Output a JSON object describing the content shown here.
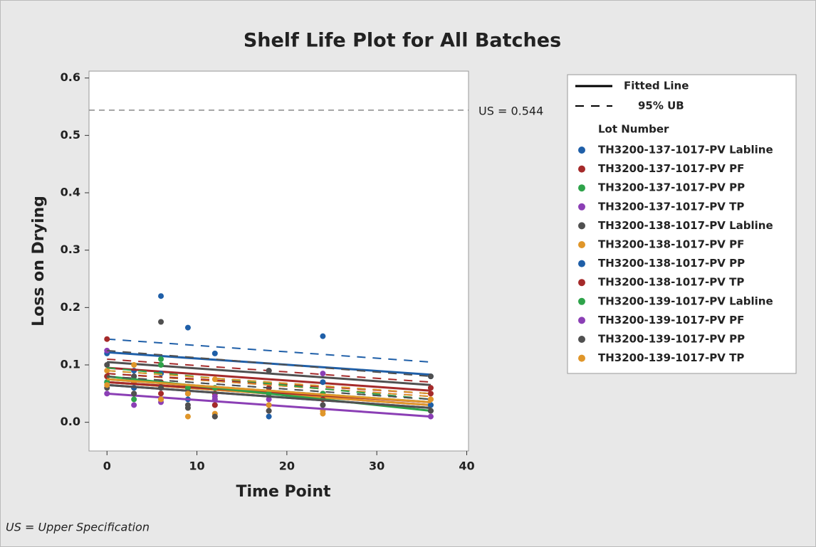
{
  "chart_data": {
    "type": "scatter",
    "title": "Shelf Life Plot for All Batches",
    "xlabel": "Time Point",
    "ylabel": "Loss on Drying",
    "footnote": "US = Upper Specification",
    "legend_fit": "Fitted Line",
    "legend_ub": "95% UB",
    "legend_title": "Lot Number",
    "reference_line": {
      "value": 0.544,
      "label": "US = 0.544"
    },
    "x": [
      0,
      3,
      6,
      9,
      12,
      18,
      24,
      36
    ],
    "line_x": [
      0,
      36
    ],
    "xlim": [
      -2,
      40.2
    ],
    "xticks": [
      0,
      10,
      20,
      30,
      40
    ],
    "ylim": [
      -0.05,
      0.612
    ],
    "yticks": [
      {
        "value": 0,
        "label": "0.0"
      },
      0.1,
      0.2,
      0.3,
      0.4,
      0.5,
      0.6
    ],
    "series": [
      {
        "name": "TH3200-137-1017-PV Labline",
        "color": "#1f5fa8",
        "values": [
          0.12,
          0.09,
          0.22,
          0.165,
          0.12,
          0.09,
          0.15,
          0.08
        ],
        "fit": [
          0.122,
          0.083
        ],
        "ub": [
          0.145,
          0.105
        ]
      },
      {
        "name": "TH3200-137-1017-PV PF",
        "color": "#a52a2a",
        "values": [
          0.145,
          0.08,
          0.07,
          0.06,
          0.05,
          0.06,
          0.05,
          0.05
        ],
        "fit": [
          0.095,
          0.055
        ],
        "ub": [
          0.11,
          0.07
        ]
      },
      {
        "name": "TH3200-137-1017-PV PP",
        "color": "#2ea34a",
        "values": [
          0.08,
          0.06,
          0.11,
          0.05,
          0.04,
          0.05,
          0.04,
          0.03
        ],
        "fit": [
          0.075,
          0.035
        ],
        "ub": [
          0.09,
          0.05
        ]
      },
      {
        "name": "TH3200-137-1017-PV TP",
        "color": "#8b3fb5",
        "values": [
          0.125,
          0.07,
          0.06,
          0.05,
          0.045,
          0.04,
          0.085,
          0.02
        ],
        "fit": [
          0.07,
          0.03
        ],
        "ub": [
          0.085,
          0.045
        ]
      },
      {
        "name": "TH3200-138-1017-PV Labline",
        "color": "#505050",
        "values": [
          0.1,
          0.08,
          0.175,
          0.03,
          0.01,
          0.09,
          0.07,
          0.08
        ],
        "fit": [
          0.105,
          0.065
        ],
        "ub": [
          0.125,
          0.08
        ]
      },
      {
        "name": "TH3200-138-1017-PV PF",
        "color": "#e0962a",
        "values": [
          0.09,
          0.07,
          0.04,
          0.01,
          0.015,
          0.05,
          0.02,
          0.04
        ],
        "fit": [
          0.07,
          0.03
        ],
        "ub": [
          0.085,
          0.045
        ]
      },
      {
        "name": "TH3200-138-1017-PV PP",
        "color": "#1f5fa8",
        "values": [
          0.07,
          0.06,
          0.085,
          0.04,
          0.03,
          0.01,
          0.07,
          0.03
        ],
        "fit": [
          0.065,
          0.025
        ],
        "ub": [
          0.08,
          0.04
        ]
      },
      {
        "name": "TH3200-138-1017-PV TP",
        "color": "#a52a2a",
        "values": [
          0.08,
          0.05,
          0.05,
          0.06,
          0.03,
          0.02,
          0.04,
          0.06
        ],
        "fit": [
          0.07,
          0.035
        ],
        "ub": [
          0.085,
          0.05
        ]
      },
      {
        "name": "TH3200-139-1017-PV Labline",
        "color": "#2ea34a",
        "values": [
          0.07,
          0.04,
          0.1,
          0.06,
          0.06,
          0.05,
          0.05,
          0.02
        ],
        "fit": [
          0.08,
          0.02
        ],
        "ub": [
          0.095,
          0.04
        ]
      },
      {
        "name": "TH3200-139-1017-PV PF",
        "color": "#8b3fb5",
        "values": [
          0.05,
          0.03,
          0.035,
          0.05,
          0.04,
          0.03,
          0.03,
          0.01
        ],
        "fit": [
          0.05,
          0.01
        ],
        "ub": [
          0.065,
          0.025
        ]
      },
      {
        "name": "TH3200-139-1017-PV PP",
        "color": "#505050",
        "values": [
          0.06,
          0.05,
          0.06,
          0.025,
          0.01,
          0.02,
          0.03,
          0.02
        ],
        "fit": [
          0.065,
          0.025
        ],
        "ub": [
          0.08,
          0.04
        ]
      },
      {
        "name": "TH3200-139-1017-PV TP",
        "color": "#e0962a",
        "values": [
          0.065,
          0.1,
          0.04,
          0.05,
          0.075,
          0.03,
          0.015,
          0.04
        ],
        "fit": [
          0.075,
          0.035
        ],
        "ub": [
          0.09,
          0.05
        ]
      }
    ]
  }
}
